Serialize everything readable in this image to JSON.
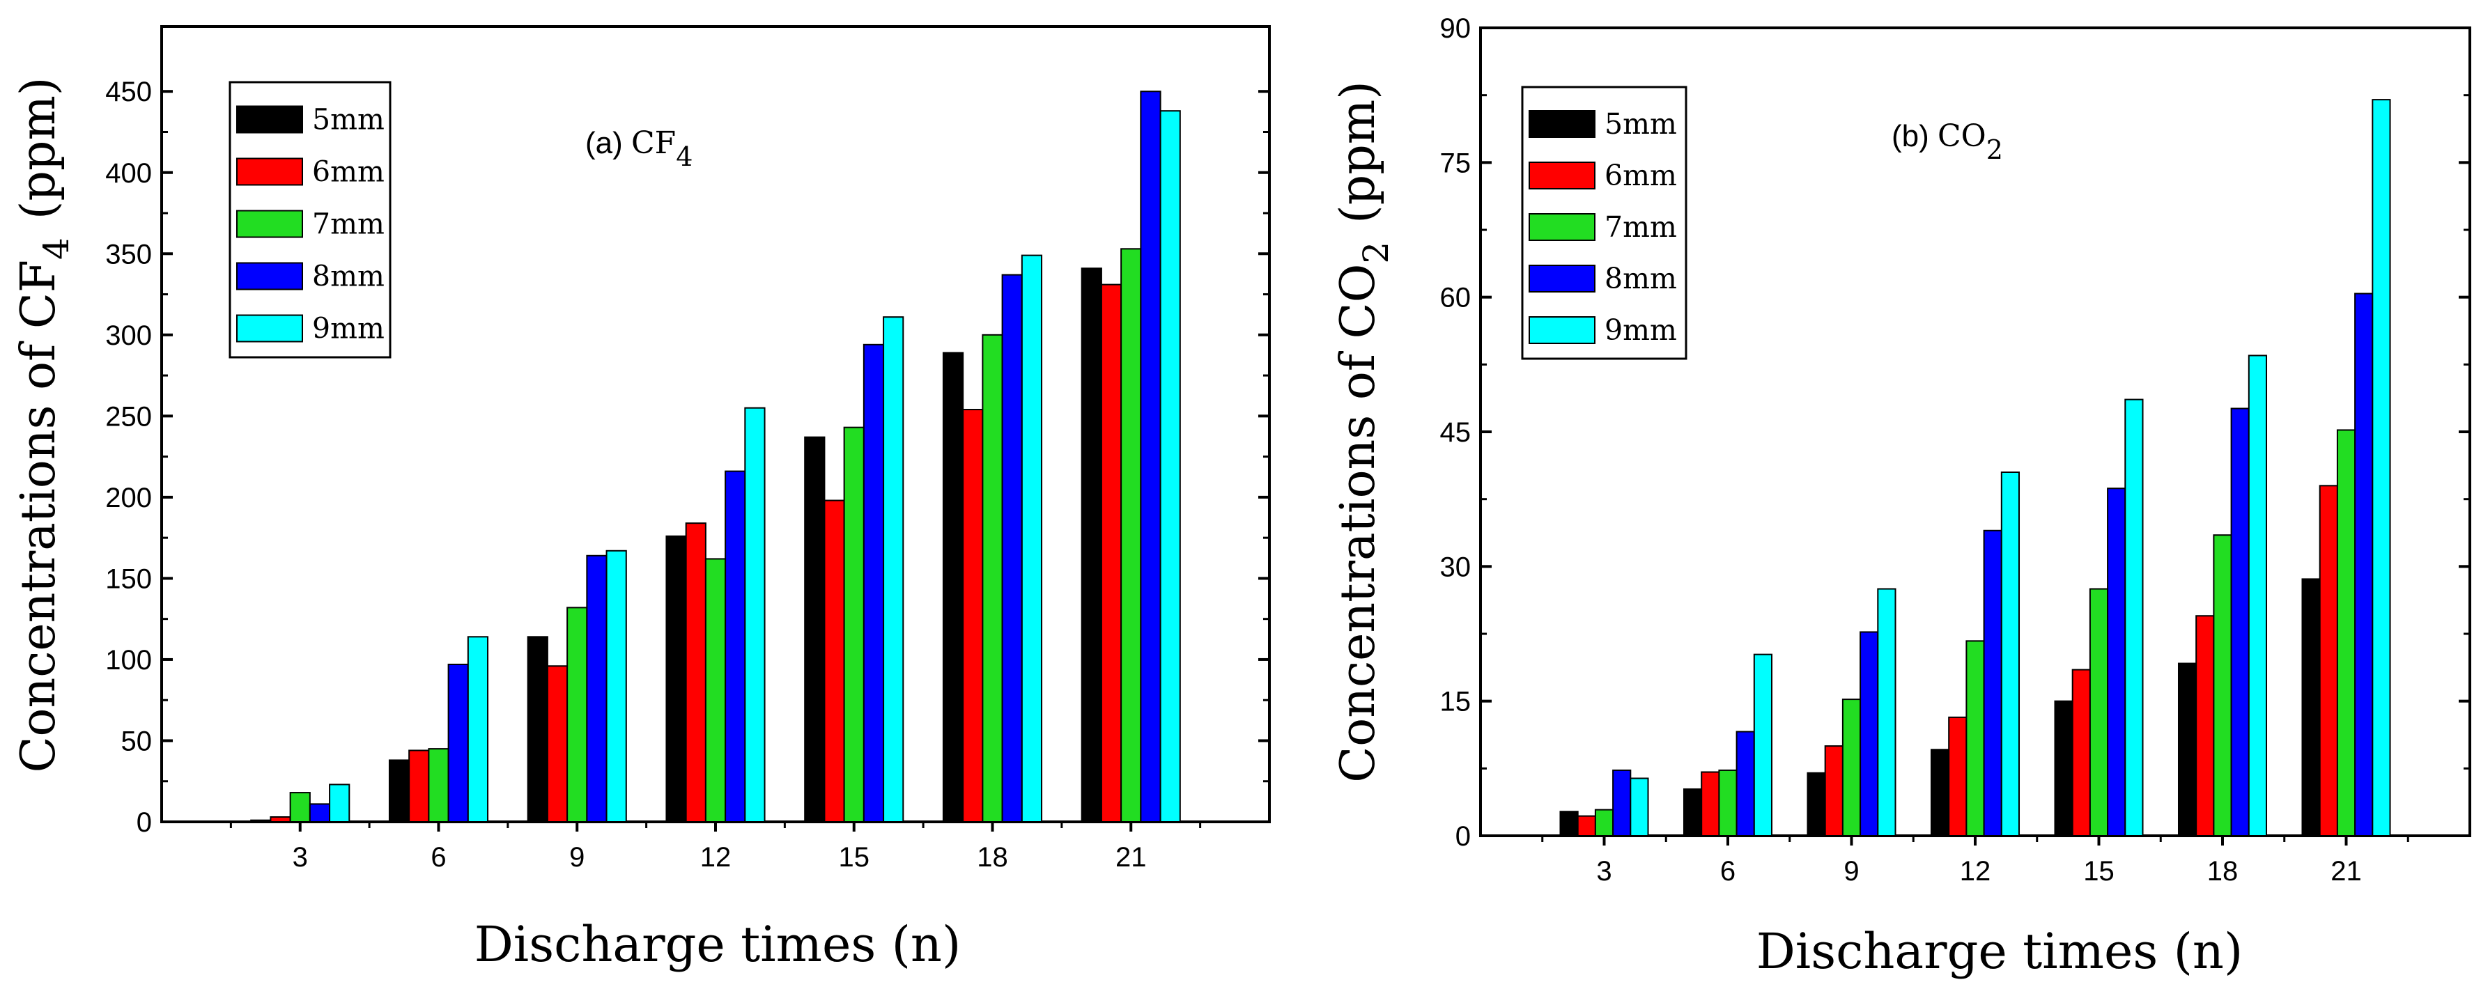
{
  "legend_colors": {
    "5mm": "#000000",
    "6mm": "#ff0000",
    "7mm": "#22dd22",
    "8mm": "#0000ff",
    "9mm": "#00ffff"
  },
  "charts": [
    {
      "id": "a",
      "panel_label": "(a)",
      "species": "CF",
      "species_sub": "4",
      "ylabel_main": "Concentrations of CF",
      "ylabel_sub": "4",
      "ylabel_unit": "(ppm)",
      "xlabel": "Discharge times (n)"
    },
    {
      "id": "b",
      "panel_label": "(b)",
      "species": "CO",
      "species_sub": "2",
      "ylabel_main": "Concentrations of CO",
      "ylabel_sub": "2",
      "ylabel_unit": "(ppm)",
      "xlabel": "Discharge times (n)"
    }
  ],
  "chart_data": [
    {
      "type": "bar",
      "title": "(a) CF4",
      "xlabel": "Discharge times (n)",
      "ylabel": "Concentrations of CF4 (ppm)",
      "categories": [
        "3",
        "6",
        "9",
        "12",
        "15",
        "18",
        "21"
      ],
      "ylim": [
        0,
        490
      ],
      "yticks": [
        0,
        50,
        100,
        150,
        200,
        250,
        300,
        350,
        400,
        450
      ],
      "legend_position": "top-left",
      "series": [
        {
          "name": "5mm",
          "color": "#000000",
          "values": [
            1,
            38,
            114,
            176,
            237,
            289,
            341
          ]
        },
        {
          "name": "6mm",
          "color": "#ff0000",
          "values": [
            3,
            44,
            96,
            184,
            198,
            254,
            331
          ]
        },
        {
          "name": "7mm",
          "color": "#22dd22",
          "values": [
            18,
            45,
            132,
            162,
            243,
            300,
            353
          ]
        },
        {
          "name": "8mm",
          "color": "#0000ff",
          "values": [
            11,
            97,
            164,
            216,
            294,
            337,
            450
          ]
        },
        {
          "name": "9mm",
          "color": "#00ffff",
          "values": [
            23,
            114,
            167,
            255,
            311,
            349,
            438
          ]
        }
      ]
    },
    {
      "type": "bar",
      "title": "(b) CO2",
      "xlabel": "Discharge times (n)",
      "ylabel": "Concentrations of CO2 (ppm)",
      "categories": [
        "3",
        "6",
        "9",
        "12",
        "15",
        "18",
        "21"
      ],
      "ylim": [
        0,
        90
      ],
      "yticks": [
        0,
        15,
        30,
        45,
        60,
        75,
        90
      ],
      "legend_position": "top-left",
      "series": [
        {
          "name": "5mm",
          "color": "#000000",
          "values": [
            2.7,
            5.2,
            7.0,
            9.6,
            15.0,
            19.2,
            28.6
          ]
        },
        {
          "name": "6mm",
          "color": "#ff0000",
          "values": [
            2.2,
            7.1,
            10.0,
            13.2,
            18.5,
            24.5,
            39.0
          ]
        },
        {
          "name": "7mm",
          "color": "#22dd22",
          "values": [
            2.9,
            7.3,
            15.2,
            21.7,
            27.5,
            33.5,
            45.2
          ]
        },
        {
          "name": "8mm",
          "color": "#0000ff",
          "values": [
            7.3,
            11.6,
            22.7,
            34.0,
            38.7,
            47.6,
            60.4
          ]
        },
        {
          "name": "9mm",
          "color": "#00ffff",
          "values": [
            6.4,
            20.2,
            27.5,
            40.5,
            48.6,
            53.5,
            82.0
          ]
        }
      ]
    }
  ]
}
